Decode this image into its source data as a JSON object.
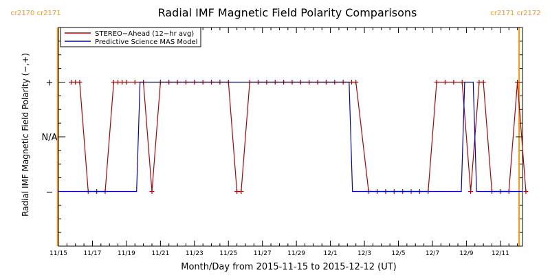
{
  "chart_data": {
    "type": "line",
    "title": "Radial IMF Magnetic Field Polarity Comparisons",
    "xlabel": "Month/Day from 2015-11-15 to 2015-12-12 (UT)",
    "ylabel": "Radial IMF Magnetic Field Polarity (−,+)",
    "xlim": [
      0,
      27.3
    ],
    "ylim": [
      -2,
      2
    ],
    "x_ticks": [
      {
        "value": 0,
        "label": "11/15"
      },
      {
        "value": 2,
        "label": "11/17"
      },
      {
        "value": 4,
        "label": "11/19"
      },
      {
        "value": 6,
        "label": "11/21"
      },
      {
        "value": 8,
        "label": "11/23"
      },
      {
        "value": 10,
        "label": "11/25"
      },
      {
        "value": 12,
        "label": "11/27"
      },
      {
        "value": 14,
        "label": "11/29"
      },
      {
        "value": 16,
        "label": "12/1"
      },
      {
        "value": 18,
        "label": "12/3"
      },
      {
        "value": 20,
        "label": "12/5"
      },
      {
        "value": 22,
        "label": "12/7"
      },
      {
        "value": 24,
        "label": "12/9"
      },
      {
        "value": 26,
        "label": "12/11"
      }
    ],
    "y_ticks": [
      {
        "value": 1,
        "label": "+"
      },
      {
        "value": 0,
        "label": "N/A"
      },
      {
        "value": -1,
        "label": "−"
      }
    ],
    "carrington_markers": [
      {
        "x": -0.05,
        "labels": [
          "cr2170",
          "cr2171"
        ],
        "side": "left",
        "color": "#ff9900"
      },
      {
        "x": 27.1,
        "labels": [
          "cr2171",
          "cr2172"
        ],
        "side": "right",
        "color": "#ff9900"
      }
    ],
    "legend": {
      "position": "top-left"
    },
    "series": [
      {
        "name": "STEREO−Ahead (12−hr avg)",
        "color": "#b00000",
        "markers": true,
        "points": [
          [
            0.75,
            1
          ],
          [
            1.0,
            1
          ],
          [
            1.25,
            1
          ],
          [
            1.75,
            -1
          ],
          [
            2.25,
            -1
          ],
          [
            2.75,
            -1
          ],
          [
            3.25,
            1
          ],
          [
            3.5,
            1
          ],
          [
            3.75,
            1
          ],
          [
            4.0,
            1
          ],
          [
            4.5,
            1
          ],
          [
            5.0,
            1
          ],
          [
            5.5,
            -1
          ],
          [
            6.0,
            1
          ],
          [
            6.5,
            1
          ],
          [
            7.0,
            1
          ],
          [
            7.5,
            1
          ],
          [
            8.0,
            1
          ],
          [
            8.5,
            1
          ],
          [
            9.0,
            1
          ],
          [
            9.5,
            1
          ],
          [
            10.0,
            1
          ],
          [
            10.5,
            -1
          ],
          [
            10.75,
            -1
          ],
          [
            11.25,
            1
          ],
          [
            11.75,
            1
          ],
          [
            12.25,
            1
          ],
          [
            12.75,
            1
          ],
          [
            13.25,
            1
          ],
          [
            13.75,
            1
          ],
          [
            14.25,
            1
          ],
          [
            14.75,
            1
          ],
          [
            15.25,
            1
          ],
          [
            15.75,
            1
          ],
          [
            16.25,
            1
          ],
          [
            16.75,
            1
          ],
          [
            17.25,
            1
          ],
          [
            17.5,
            1
          ],
          [
            18.25,
            -1
          ],
          [
            18.75,
            -1
          ],
          [
            19.25,
            -1
          ],
          [
            19.75,
            -1
          ],
          [
            20.25,
            -1
          ],
          [
            20.75,
            -1
          ],
          [
            21.25,
            -1
          ],
          [
            21.75,
            -1
          ],
          [
            22.25,
            1
          ],
          [
            22.75,
            1
          ],
          [
            23.25,
            1
          ],
          [
            23.75,
            1
          ],
          [
            24.25,
            -1
          ],
          [
            24.75,
            1
          ],
          [
            25.0,
            1
          ],
          [
            25.5,
            -1
          ],
          [
            26.0,
            -1
          ],
          [
            26.5,
            -1
          ],
          [
            27.0,
            1
          ],
          [
            27.5,
            -1
          ]
        ]
      },
      {
        "name": "Predictive Science MAS Model",
        "color": "#0000c0",
        "markers": false,
        "points": [
          [
            0,
            -1
          ],
          [
            4.6,
            -1
          ],
          [
            4.8,
            1
          ],
          [
            17.1,
            1
          ],
          [
            17.3,
            -1
          ],
          [
            23.7,
            -1
          ],
          [
            23.9,
            1
          ],
          [
            24.4,
            1
          ],
          [
            24.6,
            -1
          ],
          [
            27.3,
            -1
          ]
        ]
      }
    ]
  }
}
